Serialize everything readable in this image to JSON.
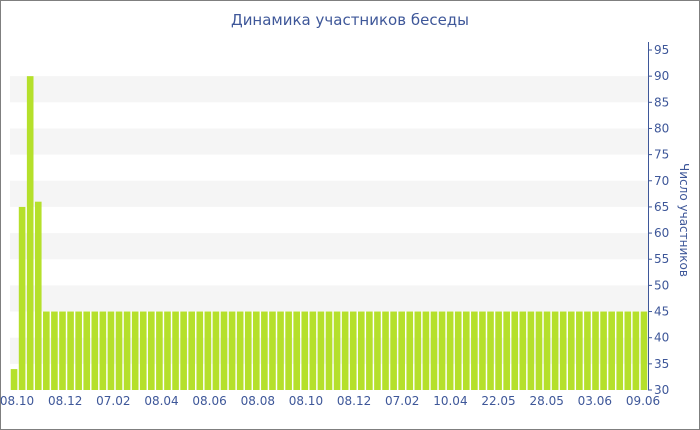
{
  "chart_data": {
    "type": "bar",
    "title": "Динамика участников беседы",
    "xlabel": "",
    "ylabel": "Число участников",
    "ylim": [
      30,
      95
    ],
    "yticks": [
      30,
      35,
      40,
      45,
      50,
      55,
      60,
      65,
      70,
      75,
      80,
      85,
      90,
      95
    ],
    "y_axis_side": "right",
    "grid": "alternating horizontal bands",
    "bar_color": "#b5e02b",
    "band_color": "#f5f5f5",
    "text_color": "#3e5799",
    "x_tick_labels": [
      "08.10",
      "08.12",
      "07.02",
      "08.04",
      "08.06",
      "08.08",
      "08.10",
      "08.12",
      "07.02",
      "10.04",
      "22.05",
      "28.05",
      "03.06",
      "09.06"
    ],
    "values": [
      34,
      65,
      90,
      66,
      45,
      45,
      45,
      45,
      45,
      45,
      45,
      45,
      45,
      45,
      45,
      45,
      45,
      45,
      45,
      45,
      45,
      45,
      45,
      45,
      45,
      45,
      45,
      45,
      45,
      45,
      45,
      45,
      45,
      45,
      45,
      45,
      45,
      45,
      45,
      45,
      45,
      45,
      45,
      45,
      45,
      45,
      45,
      45,
      45,
      45,
      45,
      45,
      45,
      45,
      45,
      45,
      45,
      45,
      45,
      45,
      45,
      45,
      45,
      45,
      45,
      45,
      45,
      45,
      45,
      45,
      45,
      45,
      45,
      45,
      45,
      45,
      45,
      45,
      45
    ]
  }
}
